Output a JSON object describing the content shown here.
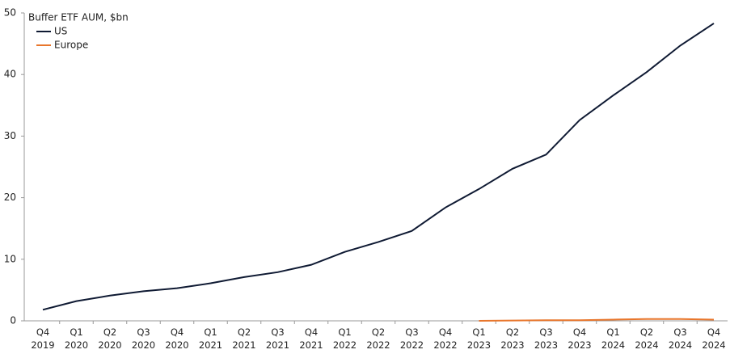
{
  "chart_data": {
    "type": "line",
    "title": "Buffer ETF AUM, $bn",
    "categories": [
      "Q4 2019",
      "Q1 2020",
      "Q2 2020",
      "Q3 2020",
      "Q4 2020",
      "Q1 2021",
      "Q2 2021",
      "Q3 2021",
      "Q4 2021",
      "Q1 2022",
      "Q2 2022",
      "Q3 2022",
      "Q4 2022",
      "Q1 2023",
      "Q2 2023",
      "Q3 2023",
      "Q4 2023",
      "Q1 2024",
      "Q2 2024",
      "Q3 2024",
      "Q4 2024"
    ],
    "series": [
      {
        "name": "US",
        "color": "#0f1a33",
        "values": [
          1.8,
          3.2,
          4.1,
          4.8,
          5.3,
          6.1,
          7.1,
          7.9,
          9.1,
          11.2,
          12.8,
          14.6,
          18.4,
          21.4,
          24.7,
          27.0,
          32.6,
          36.6,
          40.4,
          44.7,
          48.3
        ]
      },
      {
        "name": "Europe",
        "color": "#e8762c",
        "values": [
          null,
          null,
          null,
          null,
          null,
          null,
          null,
          null,
          null,
          null,
          null,
          null,
          null,
          0.0,
          0.05,
          0.1,
          0.1,
          0.2,
          0.3,
          0.3,
          0.2
        ]
      }
    ],
    "ylim": [
      0,
      50
    ],
    "yticks": [
      0,
      10,
      20,
      30,
      40,
      50
    ],
    "grid": false,
    "legend": "top-left"
  }
}
